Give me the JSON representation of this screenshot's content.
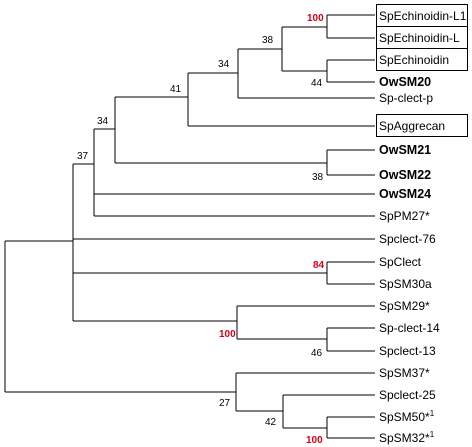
{
  "leaves": {
    "l1": {
      "text": "SpEchinoidin-L1",
      "bold": false,
      "boxed": true
    },
    "l2": {
      "text": "SpEchinoidin-L",
      "bold": false,
      "boxed": true
    },
    "l3": {
      "text": "SpEchinoidin",
      "bold": false,
      "boxed": true
    },
    "l4": {
      "text": "OwSM20",
      "bold": true,
      "boxed": false
    },
    "l5": {
      "text": "Sp-clect-p",
      "bold": false,
      "boxed": false
    },
    "l6": {
      "text": "SpAggrecan",
      "bold": false,
      "boxed": true
    },
    "l7": {
      "text": "OwSM21",
      "bold": true,
      "boxed": false
    },
    "l8": {
      "text": "OwSM22",
      "bold": true,
      "boxed": false
    },
    "l9": {
      "text": "OwSM24",
      "bold": true,
      "boxed": false
    },
    "l10": {
      "text": "SpPM27*",
      "bold": false,
      "boxed": false
    },
    "l11": {
      "text": "Spclect-76",
      "bold": false,
      "boxed": false
    },
    "l12": {
      "text": "SpClect",
      "bold": false,
      "boxed": false
    },
    "l13": {
      "text": "SpSM30a",
      "bold": false,
      "boxed": false
    },
    "l14": {
      "text": "SpSM29*",
      "bold": false,
      "boxed": false
    },
    "l15": {
      "text": "Sp-clect-14",
      "bold": false,
      "boxed": false
    },
    "l16": {
      "text": "Spclect-13",
      "bold": false,
      "boxed": false
    },
    "l17": {
      "text": "SpSM37*",
      "bold": false,
      "boxed": false
    },
    "l18": {
      "text": "Spclect-25",
      "bold": false,
      "boxed": false
    },
    "l19": {
      "text": "SpSM50*",
      "sup": "1",
      "bold": false,
      "boxed": false
    },
    "l20": {
      "text": "SpSM32*",
      "sup": "1",
      "bold": false,
      "boxed": false
    }
  },
  "bootstrap": {
    "b100a": {
      "value": "100",
      "highlight": true
    },
    "b38a": {
      "value": "38",
      "highlight": false
    },
    "b44": {
      "value": "44",
      "highlight": false
    },
    "b34a": {
      "value": "34",
      "highlight": false
    },
    "b41": {
      "value": "41",
      "highlight": false
    },
    "b34b": {
      "value": "34",
      "highlight": false
    },
    "b38b": {
      "value": "38",
      "highlight": false
    },
    "b37": {
      "value": "37",
      "highlight": false
    },
    "b84": {
      "value": "84",
      "highlight": true
    },
    "b100b": {
      "value": "100",
      "highlight": true
    },
    "b46": {
      "value": "46",
      "highlight": false
    },
    "b27": {
      "value": "27",
      "highlight": false
    },
    "b42": {
      "value": "42",
      "highlight": false
    },
    "b100c": {
      "value": "100",
      "highlight": true
    }
  },
  "colors": {
    "branch": "#000000",
    "highlight": "#d6001c"
  }
}
